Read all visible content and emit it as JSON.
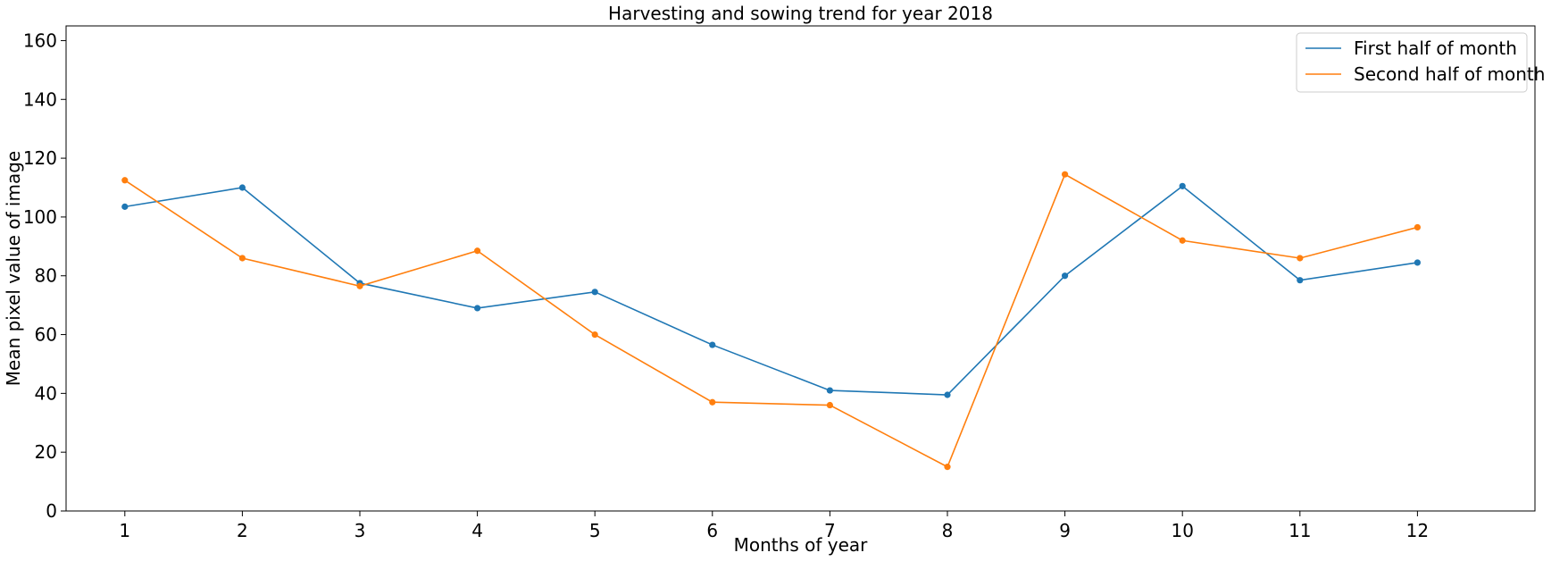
{
  "chart_data": {
    "type": "line",
    "title": "Harvesting and sowing trend for year 2018",
    "xlabel": "Months of year",
    "ylabel": "Mean pixel value of image",
    "x": [
      1,
      2,
      3,
      4,
      5,
      6,
      7,
      8,
      9,
      10,
      11,
      12
    ],
    "xlim": [
      0.5,
      13
    ],
    "ylim": [
      0,
      165
    ],
    "yticks": [
      0,
      20,
      40,
      60,
      80,
      100,
      120,
      140,
      160
    ],
    "xticks": [
      1,
      2,
      3,
      4,
      5,
      6,
      7,
      8,
      9,
      10,
      11,
      12
    ],
    "grid": false,
    "legend_position": "top-right",
    "series": [
      {
        "name": "First half of month",
        "color": "#1f77b4",
        "values": [
          103.5,
          110,
          77.5,
          69,
          74.5,
          56.5,
          41,
          39.5,
          80,
          110.5,
          78.5,
          84.5
        ]
      },
      {
        "name": "Second half of month",
        "color": "#ff7f0e",
        "values": [
          112.5,
          86,
          76.5,
          88.5,
          60,
          37,
          36,
          15,
          114.5,
          92,
          86,
          96.5
        ]
      }
    ]
  }
}
